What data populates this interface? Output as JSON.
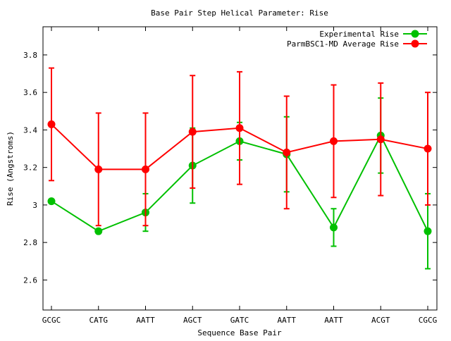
{
  "chart_data": {
    "type": "line",
    "title": "Base Pair Step Helical Parameter: Rise",
    "xlabel": "Sequence Base Pair",
    "ylabel": "Rise (Angstroms)",
    "ylim": [
      2.44,
      3.95
    ],
    "yticks": [
      2.6,
      2.8,
      3,
      3.2,
      3.4,
      3.6,
      3.8
    ],
    "ytick_labels": [
      "2.6",
      "2.8",
      "3",
      "3.2",
      "3.4",
      "3.6",
      "3.8"
    ],
    "categories": [
      "GCGC",
      "CATG",
      "AATT",
      "AGCT",
      "GATC",
      "AATT",
      "AATT",
      "ACGT",
      "CGCG"
    ],
    "legend_position": "top-right",
    "grid": false,
    "series": [
      {
        "name": "Experimental Rise",
        "color": "#00c000",
        "values": [
          3.02,
          2.86,
          2.96,
          3.21,
          3.34,
          3.27,
          2.88,
          3.37,
          2.86
        ],
        "error_low": [
          null,
          null,
          2.86,
          3.01,
          3.24,
          3.07,
          2.78,
          3.17,
          2.66
        ],
        "error_high": [
          null,
          null,
          3.06,
          3.41,
          3.44,
          3.47,
          2.98,
          3.57,
          3.06
        ]
      },
      {
        "name": "ParmBSC1-MD Average Rise",
        "color": "#ff0000",
        "values": [
          3.43,
          3.19,
          3.19,
          3.39,
          3.41,
          3.28,
          3.34,
          3.35,
          3.3
        ],
        "error_low": [
          3.13,
          2.89,
          2.89,
          3.09,
          3.11,
          2.98,
          3.04,
          3.05,
          3.0
        ],
        "error_high": [
          3.73,
          3.49,
          3.49,
          3.69,
          3.71,
          3.58,
          3.64,
          3.65,
          3.6
        ]
      }
    ]
  }
}
